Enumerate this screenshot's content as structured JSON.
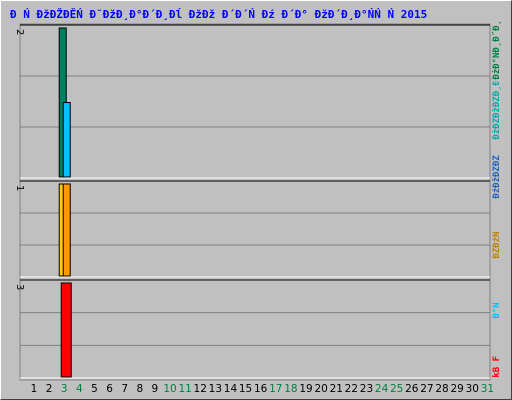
{
  "title": "Đ Ń ĐžĐŽĐĚŃ Đ˘ĐžĐ¸Đ°Đ´Đ¸Đĺ ĐžĐž Đ´Đ´Ń Đź Đ´Đ° ĐžĐ´Đ¸Đ°ŃŃ Ń  2015",
  "legend": [
    {
      "text": "ĐżĐ°ŃĐ¸Đ˝Đ¸ĐŽĐž",
      "color": "#008040"
    },
    {
      "text": "ĐżĐŽĐžĐŽĐ¸ĐľĐžĐŽ",
      "color": "#00aaaa"
    },
    {
      "text": "ĐźĐžĐŽĐŽ",
      "color": "#2060c0"
    },
    {
      "text": "ĐŽĐźŃ",
      "color": "#c08000"
    },
    {
      "text": "Đ°Ń",
      "color": "#00c0ff"
    },
    {
      "text": "kB F",
      "color": "#ff0000"
    }
  ],
  "chart_data": [
    {
      "type": "bar",
      "panel": "top",
      "categories": [
        "1",
        "2",
        "3",
        "4",
        "5",
        "6",
        "7",
        "8",
        "9",
        "10",
        "11",
        "12",
        "13",
        "14",
        "15",
        "16",
        "17",
        "18",
        "19",
        "20",
        "21",
        "22",
        "23",
        "24",
        "25",
        "26",
        "27",
        "28",
        "29",
        "30",
        "31"
      ],
      "ytick_label": "2",
      "ylim": [
        0,
        2
      ],
      "series": [
        {
          "color": "#008060",
          "values": [
            0,
            0,
            2,
            0,
            0,
            0,
            0,
            0,
            0,
            0,
            0,
            0,
            0,
            0,
            0,
            0,
            0,
            0,
            0,
            0,
            0,
            0,
            0,
            0,
            0,
            0,
            0,
            0,
            0,
            0,
            0
          ]
        },
        {
          "color": "#00c0ff",
          "values": [
            0,
            0,
            1,
            0,
            0,
            0,
            0,
            0,
            0,
            0,
            0,
            0,
            0,
            0,
            0,
            0,
            0,
            0,
            0,
            0,
            0,
            0,
            0,
            0,
            0,
            0,
            0,
            0,
            0,
            0,
            0
          ]
        }
      ]
    },
    {
      "type": "bar",
      "panel": "middle",
      "ytick_label": "1",
      "ylim": [
        0,
        1
      ],
      "series": [
        {
          "color": "#ffcc00",
          "values": [
            0,
            0,
            1,
            0,
            0,
            0,
            0,
            0,
            0,
            0,
            0,
            0,
            0,
            0,
            0,
            0,
            0,
            0,
            0,
            0,
            0,
            0,
            0,
            0,
            0,
            0,
            0,
            0,
            0,
            0,
            0
          ]
        },
        {
          "color": "#ff9900",
          "values": [
            0,
            0,
            1,
            0,
            0,
            0,
            0,
            0,
            0,
            0,
            0,
            0,
            0,
            0,
            0,
            0,
            0,
            0,
            0,
            0,
            0,
            0,
            0,
            0,
            0,
            0,
            0,
            0,
            0,
            0,
            0
          ]
        }
      ]
    },
    {
      "type": "bar",
      "panel": "bottom",
      "ytick_label": "3",
      "ylim": [
        0,
        3
      ],
      "series": [
        {
          "color": "#ff0000",
          "values": [
            0,
            0,
            3,
            0,
            0,
            0,
            0,
            0,
            0,
            0,
            0,
            0,
            0,
            0,
            0,
            0,
            0,
            0,
            0,
            0,
            0,
            0,
            0,
            0,
            0,
            0,
            0,
            0,
            0,
            0,
            0
          ]
        }
      ]
    }
  ],
  "weekend_days": [
    3,
    4,
    10,
    11,
    17,
    18,
    24,
    25,
    31
  ],
  "colors": {
    "weekday": "#000000",
    "weekend": "#008040",
    "grid": "#808080",
    "plot_bg": "#c0c0c0"
  }
}
